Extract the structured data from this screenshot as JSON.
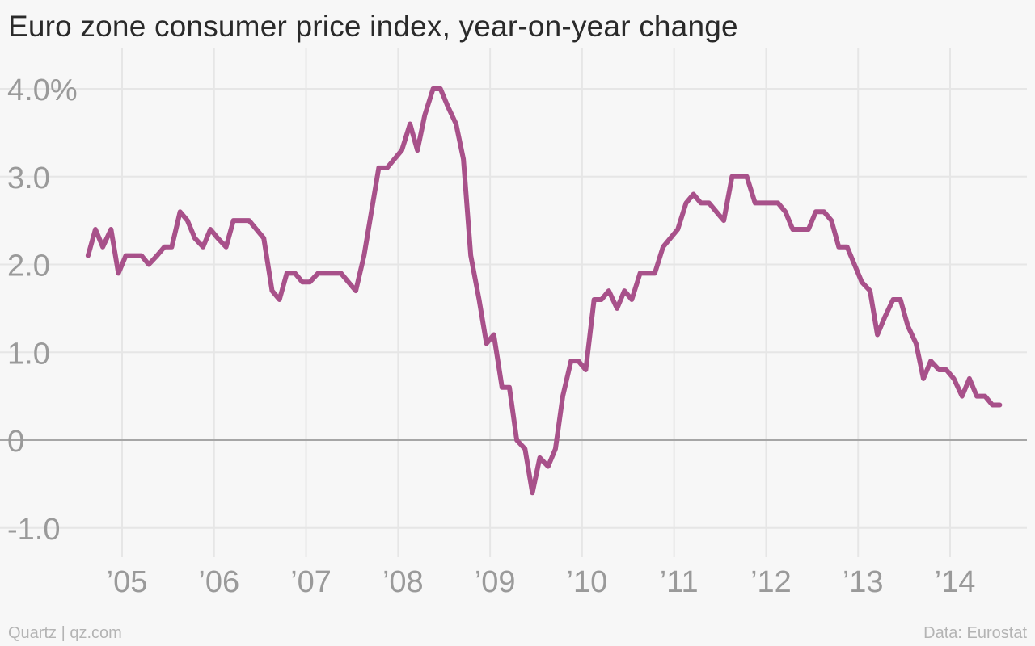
{
  "header": {
    "title": "Euro zone consumer price index, year-on-year change"
  },
  "footer": {
    "source_left": "Quartz | qz.com",
    "source_right": "Data: Eurostat"
  },
  "colors": {
    "line": "#a8518a",
    "grid": "#e6e6e6",
    "zero_line": "#a6a6a6",
    "tick_text": "#9a9a9a",
    "background": "#f7f7f7"
  },
  "chart_data": {
    "type": "line",
    "title": "Euro zone consumer price index, year-on-year change",
    "xlabel": "",
    "ylabel": "",
    "grid": true,
    "xlim": [
      2004.6,
      2014.84
    ],
    "ylim": [
      -1.3,
      4.2
    ],
    "y_ticks": [
      {
        "value": 4,
        "label": "4.0%"
      },
      {
        "value": 3,
        "label": "3.0"
      },
      {
        "value": 2,
        "label": "2.0"
      },
      {
        "value": 1,
        "label": "1.0"
      },
      {
        "value": 0,
        "label": "0"
      },
      {
        "value": -1,
        "label": "-1.0"
      }
    ],
    "x_ticks": [
      {
        "value": 2005,
        "label": "’05"
      },
      {
        "value": 2006,
        "label": "’06"
      },
      {
        "value": 2007,
        "label": "’07"
      },
      {
        "value": 2008,
        "label": "’08"
      },
      {
        "value": 2009,
        "label": "’09"
      },
      {
        "value": 2010,
        "label": "’10"
      },
      {
        "value": 2011,
        "label": "’11"
      },
      {
        "value": 2012,
        "label": "’12"
      },
      {
        "value": 2013,
        "label": "’13"
      },
      {
        "value": 2014,
        "label": "’14"
      }
    ],
    "series": [
      {
        "values": [
          [
            2004.63,
            2.1
          ],
          [
            2004.71,
            2.4
          ],
          [
            2004.79,
            2.2
          ],
          [
            2004.88,
            2.4
          ],
          [
            2004.96,
            1.9
          ],
          [
            2005.04,
            2.1
          ],
          [
            2005.13,
            2.1
          ],
          [
            2005.21,
            2.1
          ],
          [
            2005.29,
            2.0
          ],
          [
            2005.38,
            2.1
          ],
          [
            2005.46,
            2.2
          ],
          [
            2005.54,
            2.2
          ],
          [
            2005.63,
            2.6
          ],
          [
            2005.71,
            2.5
          ],
          [
            2005.79,
            2.3
          ],
          [
            2005.88,
            2.2
          ],
          [
            2005.96,
            2.4
          ],
          [
            2006.04,
            2.3
          ],
          [
            2006.13,
            2.2
          ],
          [
            2006.21,
            2.5
          ],
          [
            2006.29,
            2.5
          ],
          [
            2006.38,
            2.5
          ],
          [
            2006.46,
            2.4
          ],
          [
            2006.54,
            2.3
          ],
          [
            2006.63,
            1.7
          ],
          [
            2006.71,
            1.6
          ],
          [
            2006.79,
            1.9
          ],
          [
            2006.88,
            1.9
          ],
          [
            2006.96,
            1.8
          ],
          [
            2007.04,
            1.8
          ],
          [
            2007.13,
            1.9
          ],
          [
            2007.21,
            1.9
          ],
          [
            2007.29,
            1.9
          ],
          [
            2007.38,
            1.9
          ],
          [
            2007.46,
            1.8
          ],
          [
            2007.54,
            1.7
          ],
          [
            2007.63,
            2.1
          ],
          [
            2007.71,
            2.6
          ],
          [
            2007.79,
            3.1
          ],
          [
            2007.88,
            3.1
          ],
          [
            2007.96,
            3.2
          ],
          [
            2008.04,
            3.3
          ],
          [
            2008.13,
            3.6
          ],
          [
            2008.21,
            3.3
          ],
          [
            2008.29,
            3.7
          ],
          [
            2008.38,
            4.0
          ],
          [
            2008.46,
            4.0
          ],
          [
            2008.54,
            3.8
          ],
          [
            2008.63,
            3.6
          ],
          [
            2008.71,
            3.2
          ],
          [
            2008.79,
            2.1
          ],
          [
            2008.88,
            1.6
          ],
          [
            2008.96,
            1.1
          ],
          [
            2009.04,
            1.2
          ],
          [
            2009.13,
            0.6
          ],
          [
            2009.21,
            0.6
          ],
          [
            2009.29,
            0.0
          ],
          [
            2009.38,
            -0.1
          ],
          [
            2009.46,
            -0.6
          ],
          [
            2009.54,
            -0.2
          ],
          [
            2009.63,
            -0.3
          ],
          [
            2009.71,
            -0.1
          ],
          [
            2009.79,
            0.5
          ],
          [
            2009.88,
            0.9
          ],
          [
            2009.96,
            0.9
          ],
          [
            2010.04,
            0.8
          ],
          [
            2010.13,
            1.6
          ],
          [
            2010.21,
            1.6
          ],
          [
            2010.29,
            1.7
          ],
          [
            2010.38,
            1.5
          ],
          [
            2010.46,
            1.7
          ],
          [
            2010.54,
            1.6
          ],
          [
            2010.63,
            1.9
          ],
          [
            2010.71,
            1.9
          ],
          [
            2010.79,
            1.9
          ],
          [
            2010.88,
            2.2
          ],
          [
            2010.96,
            2.3
          ],
          [
            2011.04,
            2.4
          ],
          [
            2011.13,
            2.7
          ],
          [
            2011.21,
            2.8
          ],
          [
            2011.29,
            2.7
          ],
          [
            2011.38,
            2.7
          ],
          [
            2011.46,
            2.6
          ],
          [
            2011.54,
            2.5
          ],
          [
            2011.63,
            3.0
          ],
          [
            2011.71,
            3.0
          ],
          [
            2011.79,
            3.0
          ],
          [
            2011.88,
            2.7
          ],
          [
            2011.96,
            2.7
          ],
          [
            2012.04,
            2.7
          ],
          [
            2012.13,
            2.7
          ],
          [
            2012.21,
            2.6
          ],
          [
            2012.29,
            2.4
          ],
          [
            2012.38,
            2.4
          ],
          [
            2012.46,
            2.4
          ],
          [
            2012.54,
            2.6
          ],
          [
            2012.63,
            2.6
          ],
          [
            2012.71,
            2.5
          ],
          [
            2012.79,
            2.2
          ],
          [
            2012.88,
            2.2
          ],
          [
            2012.96,
            2.0
          ],
          [
            2013.04,
            1.8
          ],
          [
            2013.13,
            1.7
          ],
          [
            2013.21,
            1.2
          ],
          [
            2013.29,
            1.4
          ],
          [
            2013.38,
            1.6
          ],
          [
            2013.46,
            1.6
          ],
          [
            2013.54,
            1.3
          ],
          [
            2013.63,
            1.1
          ],
          [
            2013.71,
            0.7
          ],
          [
            2013.79,
            0.9
          ],
          [
            2013.88,
            0.8
          ],
          [
            2013.96,
            0.8
          ],
          [
            2014.04,
            0.7
          ],
          [
            2014.13,
            0.5
          ],
          [
            2014.21,
            0.7
          ],
          [
            2014.29,
            0.5
          ],
          [
            2014.38,
            0.5
          ],
          [
            2014.46,
            0.4
          ],
          [
            2014.54,
            0.4
          ]
        ]
      }
    ]
  }
}
